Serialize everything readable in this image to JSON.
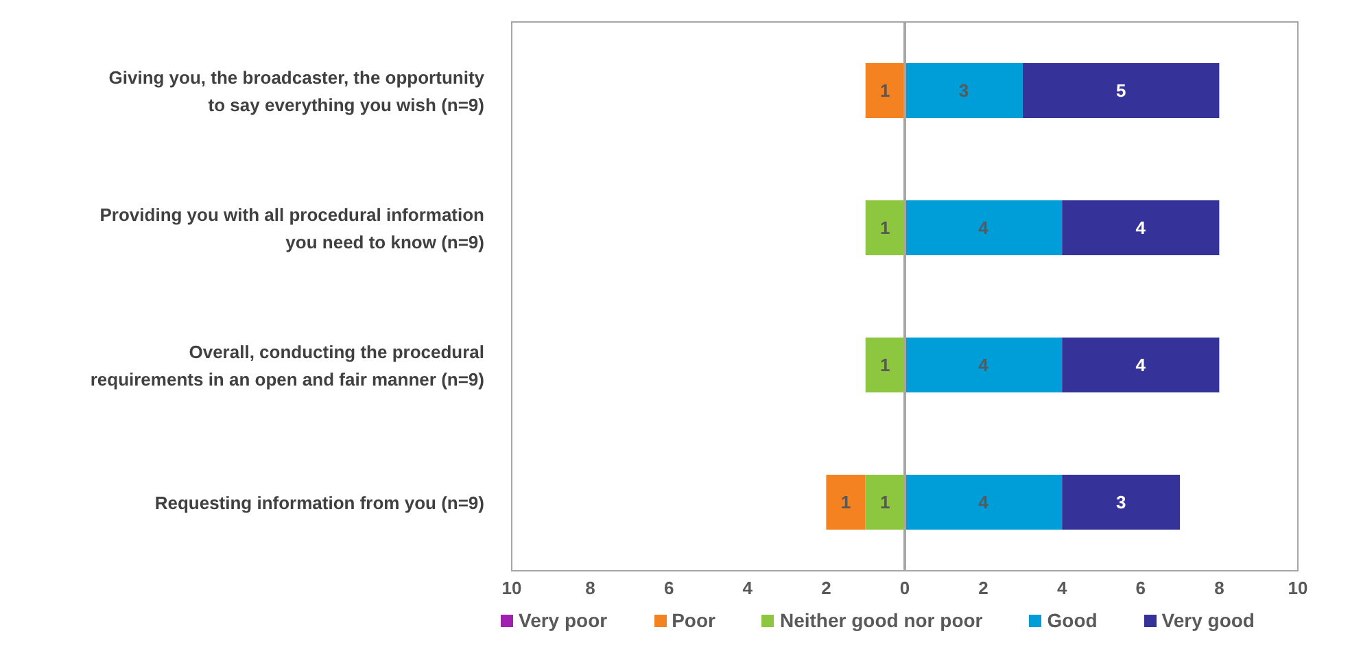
{
  "chart_data": {
    "type": "bar",
    "orientation": "horizontal",
    "categories": [
      "Giving you, the broadcaster, the opportunity to say everything you wish (n=9)",
      "Providing you with all procedural information you need to know (n=9)",
      "Overall, conducting the procedural requirements in an open and fair manner (n=9)",
      "Requesting information from you (n=9)"
    ],
    "series": [
      {
        "name": "Very poor",
        "color": "#a020b0",
        "values": [
          null,
          null,
          null,
          null
        ],
        "base": [
          null,
          null,
          null,
          null
        ]
      },
      {
        "name": "Poor",
        "color": "#f58220",
        "values": [
          1,
          null,
          null,
          1
        ],
        "base": [
          -1,
          null,
          null,
          -2
        ]
      },
      {
        "name": "Neither good nor poor",
        "color": "#8dc63f",
        "values": [
          null,
          1,
          1,
          1
        ],
        "base": [
          null,
          -1,
          -1,
          -1
        ]
      },
      {
        "name": "Good",
        "color": "#009ed8",
        "values": [
          3,
          4,
          4,
          4
        ],
        "base": [
          0,
          0,
          0,
          0
        ]
      },
      {
        "name": "Very good",
        "color": "#353399",
        "values": [
          5,
          4,
          4,
          3
        ],
        "base": [
          3,
          4,
          4,
          4
        ]
      }
    ],
    "data_labels": true,
    "xlim": [
      -10,
      10
    ],
    "xticks": [
      {
        "value": -10,
        "label": "10"
      },
      {
        "value": -8,
        "label": "8"
      },
      {
        "value": -6,
        "label": "6"
      },
      {
        "value": -4,
        "label": "4"
      },
      {
        "value": -2,
        "label": "2"
      },
      0,
      2,
      4,
      6,
      8,
      10
    ],
    "ref_lines": [
      {
        "axis": "x",
        "value": 0,
        "color": "#a6a6a6"
      }
    ],
    "legend": "bottom"
  }
}
